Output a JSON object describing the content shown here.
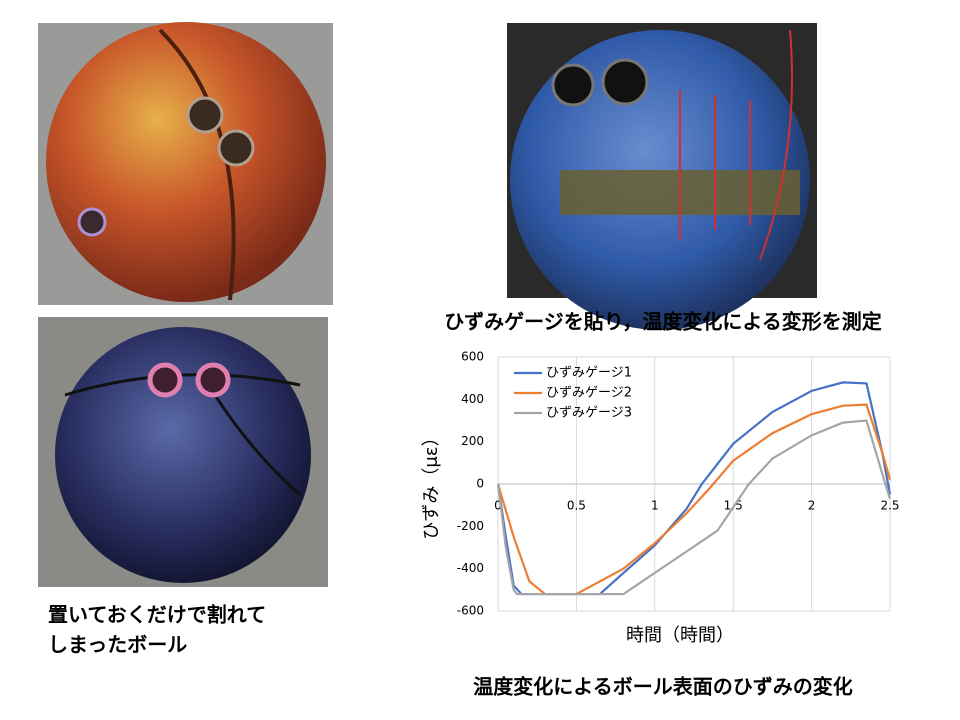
{
  "captions": {
    "gauge": "ひずみゲージを貼り，温度変化による変形を測定",
    "broken_line1": "置いておくだけで割れて",
    "broken_line2": "しまったボール"
  },
  "chart_data": {
    "type": "line",
    "title": "温度変化によるボール表面のひずみの変化",
    "x_label": "時間（時間）",
    "y_label": "ひずみ（με）",
    "xlim": [
      0,
      2.5
    ],
    "xticks": [
      0,
      0.5,
      1,
      1.5,
      2,
      2.5
    ],
    "ylim": [
      -600,
      600
    ],
    "yticks": [
      -600,
      -400,
      -200,
      0,
      200,
      400,
      600
    ],
    "grid": true,
    "legend": "upper-left",
    "series": [
      {
        "name": "ひずみゲージ1",
        "color": "#4472c4",
        "x": [
          0,
          0.05,
          0.1,
          0.15,
          0.65,
          0.8,
          1.0,
          1.2,
          1.3,
          1.5,
          1.75,
          2.0,
          2.2,
          2.35,
          2.45,
          2.5
        ],
        "values": [
          0,
          -250,
          -480,
          -520,
          -520,
          -420,
          -290,
          -120,
          0,
          190,
          340,
          440,
          480,
          475,
          150,
          -50
        ]
      },
      {
        "name": "ひずみゲージ2",
        "color": "#ed7d31",
        "x": [
          0,
          0.1,
          0.2,
          0.3,
          0.5,
          0.8,
          1.0,
          1.2,
          1.35,
          1.5,
          1.75,
          2.0,
          2.2,
          2.35,
          2.45,
          2.5
        ],
        "values": [
          0,
          -250,
          -460,
          -520,
          -520,
          -400,
          -280,
          -140,
          -20,
          110,
          240,
          330,
          370,
          375,
          150,
          20
        ]
      },
      {
        "name": "ひずみゲージ3",
        "color": "#a5a5a5",
        "x": [
          0,
          0.05,
          0.1,
          0.12,
          0.8,
          1.0,
          1.2,
          1.4,
          1.5,
          1.6,
          1.75,
          2.0,
          2.2,
          2.35,
          2.45,
          2.5
        ],
        "values": [
          0,
          -300,
          -500,
          -520,
          -520,
          -420,
          -320,
          -220,
          -110,
          0,
          120,
          230,
          290,
          300,
          50,
          -70
        ]
      }
    ]
  }
}
